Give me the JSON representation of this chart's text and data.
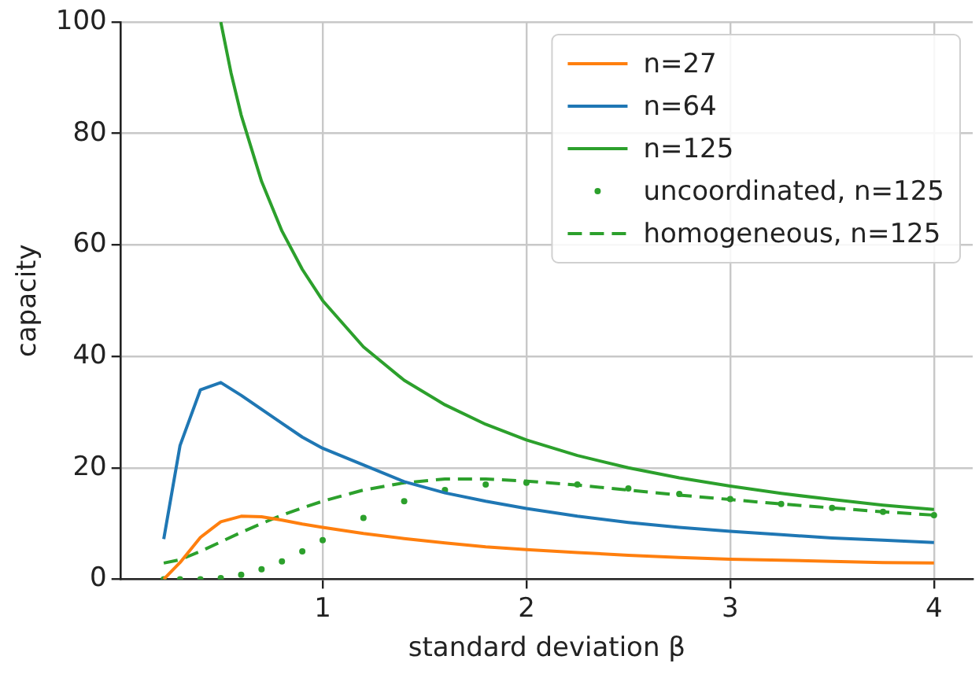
{
  "chart_data": {
    "type": "line",
    "xlabel": "standard deviation β",
    "ylabel": "capacity",
    "xlim": [
      0.01,
      4.19
    ],
    "ylim": [
      0,
      100
    ],
    "xticks": [
      1,
      2,
      3,
      4
    ],
    "yticks": [
      0,
      20,
      40,
      60,
      80,
      100
    ],
    "grid": true,
    "legend": "top right",
    "x": [
      0.22,
      0.3,
      0.4,
      0.5,
      0.6,
      0.7,
      0.8,
      0.9,
      1,
      1.2,
      1.4,
      1.6,
      1.8,
      2,
      2.25,
      2.5,
      2.75,
      3,
      3.25,
      3.5,
      3.75,
      4
    ],
    "series": [
      {
        "name": "n=27",
        "color": "#ff7f0e",
        "line_style": "solid",
        "marker": "none",
        "values": [
          0,
          3,
          7.5,
          10.3,
          11.3,
          11.2,
          10.6,
          9.9,
          9.3,
          8.2,
          7.3,
          6.5,
          5.8,
          5.3,
          4.8,
          4.3,
          3.9,
          3.6,
          3.4,
          3.2,
          3,
          2.9
        ]
      },
      {
        "name": "n=64",
        "color": "#1f77b4",
        "line_style": "solid",
        "marker": "none",
        "values": [
          7.2,
          24,
          34,
          35.3,
          33,
          30.5,
          28,
          25.5,
          23.5,
          20.5,
          17.5,
          15.5,
          14,
          12.7,
          11.3,
          10.2,
          9.3,
          8.6,
          8,
          7.4,
          7,
          6.6
        ]
      },
      {
        "name": "n=125",
        "color": "#2ca02c",
        "line_style": "solid",
        "marker": "none",
        "x": [
          0.5,
          0.55,
          0.6,
          0.7,
          0.8,
          0.9,
          1,
          1.2,
          1.4,
          1.6,
          1.8,
          2,
          2.25,
          2.5,
          2.75,
          3,
          3.25,
          3.5,
          3.75,
          4
        ],
        "values": [
          100,
          90.9,
          83.3,
          71.4,
          62.5,
          55.6,
          50,
          41.7,
          35.7,
          31.3,
          27.8,
          25,
          22.2,
          20,
          18.2,
          16.7,
          15.4,
          14.3,
          13.3,
          12.5
        ]
      },
      {
        "name": "uncoordinated, n=125",
        "type": "scatter",
        "color": "#2ca02c",
        "marker": "circle",
        "values": [
          0,
          0,
          0,
          0.2,
          0.8,
          1.8,
          3.2,
          5,
          7,
          11,
          14,
          16,
          17,
          17.3,
          17,
          16.3,
          15.3,
          14.4,
          13.5,
          12.8,
          12.1,
          11.5
        ]
      },
      {
        "name": "homogeneous, n=125",
        "color": "#2ca02c",
        "line_style": "dashed",
        "marker": "none",
        "values": [
          2.9,
          3.5,
          5,
          6.7,
          8.4,
          10,
          11.5,
          12.8,
          14,
          16,
          17.3,
          18,
          18,
          17.6,
          16.9,
          16,
          15.1,
          14.3,
          13.5,
          12.8,
          12.1,
          11.5
        ]
      }
    ]
  }
}
